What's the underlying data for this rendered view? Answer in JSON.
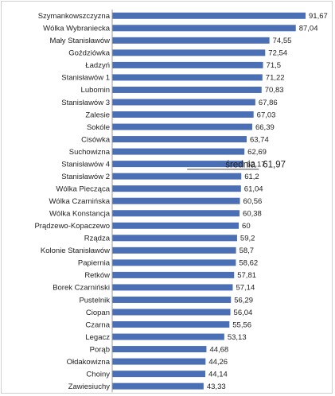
{
  "chart_data": {
    "type": "bar",
    "orientation": "horizontal",
    "title": "",
    "xlabel": "",
    "ylabel": "",
    "xlim": [
      0,
      91.67
    ],
    "grid": false,
    "legend": "none",
    "bar_color": "#4a6fb5",
    "categories": [
      "Szymankowszczyzna",
      "Wólka Wybraniecka",
      "Mały Stanisławów",
      "Goździówka",
      "Ładzyń",
      "Stanisławów 1",
      "Lubomin",
      "Stanisławów 3",
      "Zalesie",
      "Sokóle",
      "Cisówka",
      "Suchowizna",
      "Stanisławów 4",
      "Stanisławów 2",
      "Wólka Piecząca",
      "Wólka Czarnińska",
      "Wólka Konstancja",
      "Prądzewo-Kopaczewo",
      "Rządza",
      "Kolonie Stanisławów",
      "Papiernia",
      "Retków",
      "Borek Czarniński",
      "Pustelnik",
      "Ciopan",
      "Czarna",
      "Legacz",
      "Porąb",
      "Ołdakowizna",
      "Choiny",
      "Zawiesiuchy"
    ],
    "values": [
      91.67,
      87.04,
      74.55,
      72.54,
      71.5,
      71.22,
      70.83,
      67.86,
      67.03,
      66.39,
      63.74,
      62.69,
      62.17,
      61.2,
      61.04,
      60.56,
      60.38,
      60,
      59.2,
      58.7,
      58.62,
      57.81,
      57.14,
      56.29,
      56.04,
      55.56,
      53.13,
      44.68,
      44.26,
      44.14,
      43.33
    ],
    "value_labels": [
      "91,67",
      "87,04",
      "74,55",
      "72,54",
      "71,5",
      "71,22",
      "70,83",
      "67,86",
      "67,03",
      "66,39",
      "63,74",
      "62,69",
      "62,17",
      "61,2",
      "61,04",
      "60,56",
      "60,38",
      "60",
      "59,2",
      "58,7",
      "58,62",
      "57,81",
      "57,14",
      "56,29",
      "56,04",
      "55,56",
      "53,13",
      "44,68",
      "44,26",
      "44,14",
      "43,33"
    ],
    "reference_line": {
      "label": "średnia",
      "value": 61.97,
      "value_label": "61,97",
      "after_category": "Stanisławów 4"
    }
  }
}
